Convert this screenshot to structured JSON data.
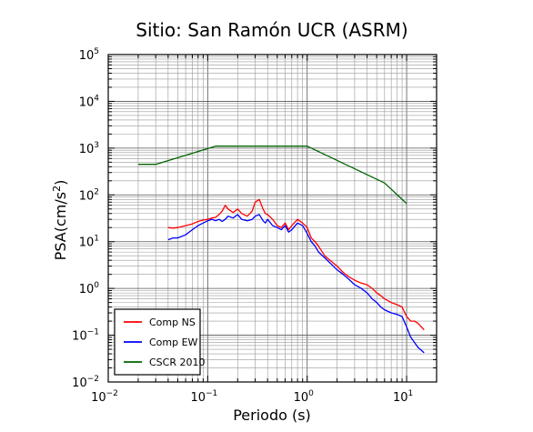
{
  "chart_data": {
    "type": "line",
    "title": "Sitio: San Ramón UCR (ASRM)",
    "xlabel": "Periodo (s)",
    "ylabel": {
      "base": "PSA(cm/s",
      "sup": "2",
      "end": ")"
    },
    "x_scale": "log",
    "y_scale": "log",
    "xlim": [
      0.01,
      20
    ],
    "ylim": [
      0.01,
      100000
    ],
    "x_ticks": [
      {
        "value": 0.01,
        "base": "10",
        "exp": "−2"
      },
      {
        "value": 0.1,
        "base": "10",
        "exp": "−1"
      },
      {
        "value": 1,
        "base": "10",
        "exp": "0"
      },
      {
        "value": 10,
        "base": "10",
        "exp": "1"
      }
    ],
    "y_ticks": [
      {
        "value": 0.01,
        "base": "10",
        "exp": "−2"
      },
      {
        "value": 0.1,
        "base": "10",
        "exp": "−1"
      },
      {
        "value": 1,
        "base": "10",
        "exp": "0"
      },
      {
        "value": 10,
        "base": "10",
        "exp": "1"
      },
      {
        "value": 100,
        "base": "10",
        "exp": "2"
      },
      {
        "value": 1000,
        "base": "10",
        "exp": "3"
      },
      {
        "value": 10000,
        "base": "10",
        "exp": "4"
      },
      {
        "value": 100000,
        "base": "10",
        "exp": "5"
      }
    ],
    "grid": true,
    "legend_position": "bottom-left",
    "series": [
      {
        "name": "Comp NS",
        "color": "#ff0000",
        "x": [
          0.04,
          0.045,
          0.05,
          0.06,
          0.07,
          0.08,
          0.09,
          0.1,
          0.11,
          0.12,
          0.13,
          0.14,
          0.15,
          0.16,
          0.18,
          0.2,
          0.22,
          0.25,
          0.28,
          0.3,
          0.33,
          0.36,
          0.38,
          0.4,
          0.45,
          0.5,
          0.55,
          0.6,
          0.65,
          0.7,
          0.8,
          0.9,
          1.0,
          1.1,
          1.2,
          1.3,
          1.5,
          1.7,
          2.0,
          2.3,
          2.6,
          3.0,
          3.5,
          4.0,
          4.5,
          5.0,
          5.5,
          6.0,
          7.0,
          8.0,
          9.0,
          10.0,
          11.0,
          12.0,
          13.0,
          15.0
        ],
        "y": [
          20,
          19.5,
          20,
          22,
          24,
          27,
          29,
          30,
          32,
          33,
          38,
          45,
          60,
          50,
          42,
          50,
          40,
          35,
          45,
          70,
          80,
          50,
          40,
          38,
          30,
          22,
          20,
          25,
          18,
          22,
          30,
          25,
          20,
          12,
          10,
          8,
          5,
          4,
          3,
          2.2,
          1.8,
          1.5,
          1.3,
          1.2,
          1.0,
          0.8,
          0.7,
          0.6,
          0.5,
          0.45,
          0.4,
          0.25,
          0.2,
          0.2,
          0.18,
          0.13
        ]
      },
      {
        "name": "Comp EW",
        "color": "#0000ff",
        "x": [
          0.04,
          0.045,
          0.05,
          0.06,
          0.07,
          0.08,
          0.09,
          0.1,
          0.11,
          0.12,
          0.13,
          0.14,
          0.15,
          0.16,
          0.18,
          0.2,
          0.22,
          0.25,
          0.28,
          0.3,
          0.33,
          0.36,
          0.38,
          0.4,
          0.45,
          0.5,
          0.55,
          0.6,
          0.65,
          0.7,
          0.8,
          0.9,
          1.0,
          1.1,
          1.2,
          1.3,
          1.5,
          1.7,
          2.0,
          2.3,
          2.6,
          3.0,
          3.5,
          4.0,
          4.5,
          5.0,
          5.5,
          6.0,
          7.0,
          8.0,
          9.0,
          10.0,
          11.0,
          12.0,
          13.0,
          15.0
        ],
        "y": [
          11,
          12,
          12,
          14,
          18,
          22,
          25,
          28,
          30,
          28,
          30,
          27,
          30,
          35,
          32,
          38,
          30,
          28,
          30,
          35,
          38,
          28,
          25,
          30,
          22,
          20,
          18,
          22,
          16,
          18,
          25,
          22,
          15,
          10,
          8,
          6,
          4.5,
          3.5,
          2.5,
          2.0,
          1.6,
          1.2,
          1.0,
          0.8,
          0.6,
          0.5,
          0.4,
          0.35,
          0.3,
          0.28,
          0.25,
          0.15,
          0.09,
          0.07,
          0.055,
          0.042
        ]
      },
      {
        "name": "CSCR 2010",
        "color": "#006400",
        "x": [
          0.02,
          0.03,
          0.12,
          1.0,
          6.0,
          10.0
        ],
        "y": [
          450,
          450,
          1100,
          1100,
          180,
          65
        ]
      }
    ]
  }
}
